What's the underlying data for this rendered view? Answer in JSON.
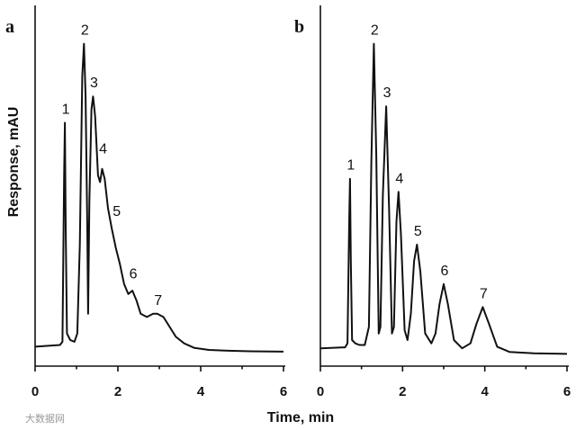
{
  "ylabel": "Response, mAU",
  "xlabel": "Time, min",
  "watermark": "大数据网",
  "chart_data": [
    {
      "type": "line",
      "panel_label": "a",
      "xlim": [
        0,
        6
      ],
      "x_ticks": [
        "0",
        "2",
        "4",
        "6"
      ],
      "ylim": [
        0,
        100
      ],
      "peaks": [
        {
          "label": "1",
          "x": 0.72,
          "y": 72
        },
        {
          "label": "2",
          "x": 1.18,
          "y": 96
        },
        {
          "label": "3",
          "x": 1.4,
          "y": 80
        },
        {
          "label": "4",
          "x": 1.62,
          "y": 60
        },
        {
          "label": "5",
          "x": 1.95,
          "y": 41
        },
        {
          "label": "6",
          "x": 2.35,
          "y": 22
        },
        {
          "label": "7",
          "x": 2.95,
          "y": 14
        }
      ],
      "trace": [
        [
          0,
          4
        ],
        [
          0.6,
          4.5
        ],
        [
          0.66,
          5.5
        ],
        [
          0.7,
          55
        ],
        [
          0.72,
          72
        ],
        [
          0.74,
          40
        ],
        [
          0.77,
          8
        ],
        [
          0.85,
          6
        ],
        [
          0.95,
          5.5
        ],
        [
          1.02,
          8
        ],
        [
          1.08,
          35
        ],
        [
          1.14,
          86
        ],
        [
          1.18,
          96
        ],
        [
          1.22,
          80
        ],
        [
          1.26,
          40
        ],
        [
          1.28,
          14
        ],
        [
          1.31,
          48
        ],
        [
          1.36,
          76
        ],
        [
          1.4,
          80
        ],
        [
          1.45,
          74
        ],
        [
          1.52,
          56
        ],
        [
          1.57,
          54
        ],
        [
          1.62,
          58
        ],
        [
          1.68,
          55
        ],
        [
          1.76,
          46
        ],
        [
          1.85,
          40
        ],
        [
          1.95,
          34
        ],
        [
          2.05,
          29
        ],
        [
          2.15,
          23
        ],
        [
          2.25,
          20
        ],
        [
          2.35,
          21
        ],
        [
          2.45,
          18
        ],
        [
          2.55,
          14
        ],
        [
          2.7,
          13
        ],
        [
          2.85,
          14
        ],
        [
          2.95,
          14
        ],
        [
          3.1,
          13
        ],
        [
          3.25,
          10
        ],
        [
          3.4,
          7
        ],
        [
          3.6,
          5
        ],
        [
          3.85,
          3.6
        ],
        [
          4.2,
          3
        ],
        [
          4.6,
          2.8
        ],
        [
          5.2,
          2.6
        ],
        [
          6,
          2.5
        ]
      ]
    },
    {
      "type": "line",
      "panel_label": "b",
      "xlim": [
        0,
        6
      ],
      "x_ticks": [
        "0",
        "2",
        "4",
        "6"
      ],
      "ylim": [
        0,
        100
      ],
      "peaks": [
        {
          "label": "1",
          "x": 0.72,
          "y": 55
        },
        {
          "label": "2",
          "x": 1.3,
          "y": 96
        },
        {
          "label": "3",
          "x": 1.6,
          "y": 77
        },
        {
          "label": "4",
          "x": 1.9,
          "y": 51
        },
        {
          "label": "5",
          "x": 2.35,
          "y": 35
        },
        {
          "label": "6",
          "x": 3,
          "y": 23
        },
        {
          "label": "7",
          "x": 3.95,
          "y": 16
        }
      ],
      "trace": [
        [
          0,
          3.5
        ],
        [
          0.6,
          3.8
        ],
        [
          0.66,
          5
        ],
        [
          0.7,
          42
        ],
        [
          0.72,
          55
        ],
        [
          0.74,
          30
        ],
        [
          0.77,
          6
        ],
        [
          0.85,
          5
        ],
        [
          0.95,
          4.5
        ],
        [
          1.08,
          4.5
        ],
        [
          1.18,
          10
        ],
        [
          1.24,
          60
        ],
        [
          1.3,
          96
        ],
        [
          1.36,
          62
        ],
        [
          1.42,
          8
        ],
        [
          1.46,
          10
        ],
        [
          1.52,
          50
        ],
        [
          1.6,
          77
        ],
        [
          1.67,
          46
        ],
        [
          1.74,
          8
        ],
        [
          1.79,
          10
        ],
        [
          1.85,
          42
        ],
        [
          1.9,
          51
        ],
        [
          1.96,
          38
        ],
        [
          2.05,
          9
        ],
        [
          2.12,
          6
        ],
        [
          2.2,
          14
        ],
        [
          2.28,
          30
        ],
        [
          2.35,
          35
        ],
        [
          2.43,
          27
        ],
        [
          2.55,
          8
        ],
        [
          2.7,
          5
        ],
        [
          2.8,
          8
        ],
        [
          2.9,
          17
        ],
        [
          3,
          23
        ],
        [
          3.1,
          17
        ],
        [
          3.25,
          6
        ],
        [
          3.45,
          3.5
        ],
        [
          3.65,
          5
        ],
        [
          3.8,
          11
        ],
        [
          3.95,
          16
        ],
        [
          4.1,
          11
        ],
        [
          4.3,
          4
        ],
        [
          4.6,
          2.4
        ],
        [
          5.2,
          2
        ],
        [
          6,
          1.8
        ]
      ]
    }
  ]
}
